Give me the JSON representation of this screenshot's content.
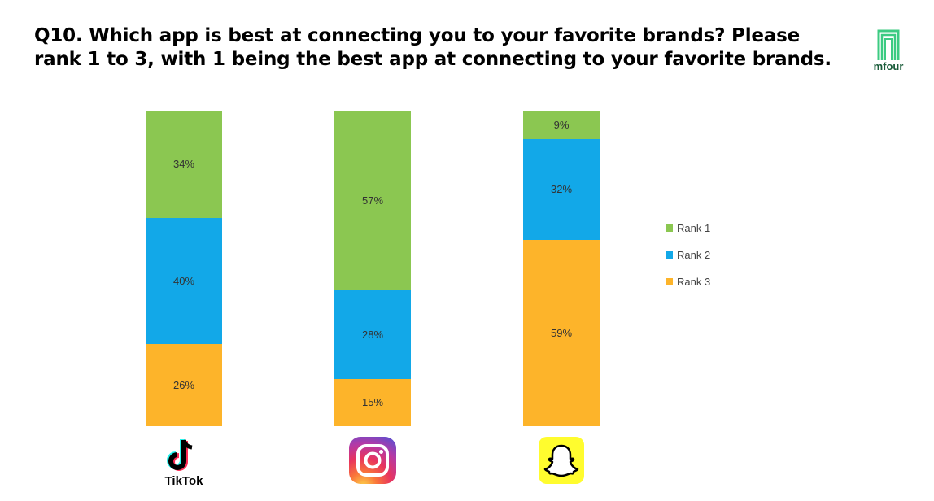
{
  "title": {
    "line1": "Q10. Which app is best at connecting you to your favorite brands? Please",
    "line2": "rank 1 to 3, with 1 being the best app at connecting to your favorite brands."
  },
  "logo": {
    "text": "mfour"
  },
  "colors": {
    "rank1": "#8BC751",
    "rank2": "#12A8E8",
    "rank3": "#FDB42A"
  },
  "legend": [
    {
      "label": "Rank 1",
      "color": "#8BC751"
    },
    {
      "label": "Rank 2",
      "color": "#12A8E8"
    },
    {
      "label": "Rank 3",
      "color": "#FDB42A"
    }
  ],
  "apps": [
    {
      "name": "TikTok",
      "icon": "tiktok-logo-icon",
      "label": "TikTok"
    },
    {
      "name": "Instagram",
      "icon": "instagram-logo-icon"
    },
    {
      "name": "Snapchat",
      "icon": "snapchat-logo-icon"
    }
  ],
  "chart_data": {
    "type": "bar",
    "stacked": true,
    "normalized": true,
    "title": "Q10. Which app is best at connecting you to your favorite brands? Please rank 1 to 3, with 1 being the best app at connecting to your favorite brands.",
    "categories": [
      "TikTok",
      "Instagram",
      "Snapchat"
    ],
    "series": [
      {
        "name": "Rank 1",
        "color": "#8BC751",
        "values": [
          34,
          57,
          9
        ],
        "labels": [
          "34%",
          "57%",
          "9%"
        ]
      },
      {
        "name": "Rank 2",
        "color": "#12A8E8",
        "values": [
          40,
          28,
          32
        ],
        "labels": [
          "40%",
          "28%",
          "32%"
        ]
      },
      {
        "name": "Rank 3",
        "color": "#FDB42A",
        "values": [
          26,
          15,
          59
        ],
        "labels": [
          "26%",
          "15%",
          "59%"
        ]
      }
    ],
    "xlabel": "",
    "ylabel": "",
    "ylim": [
      0,
      100
    ],
    "grid": false,
    "legend_position": "right"
  }
}
